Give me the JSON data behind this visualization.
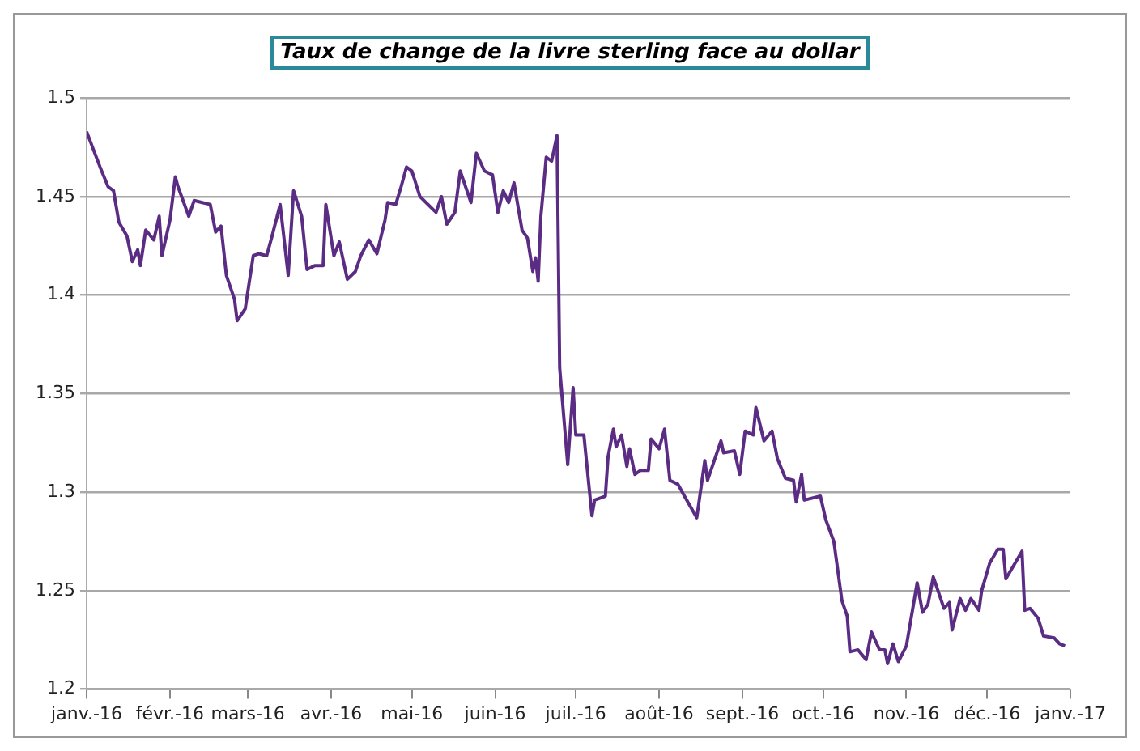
{
  "chart_data": {
    "type": "line",
    "title": "Taux de change de la livre sterling face au dollar",
    "xlim": [
      "2016-01-01",
      "2017-01-01"
    ],
    "xticks": [
      {
        "value": "2016-01-01",
        "label": "janv.-16"
      },
      {
        "value": "2016-02-01",
        "label": "févr.-16"
      },
      {
        "value": "2016-03-01",
        "label": "mars-16"
      },
      {
        "value": "2016-04-01",
        "label": "avr.-16"
      },
      {
        "value": "2016-05-01",
        "label": "mai-16"
      },
      {
        "value": "2016-06-01",
        "label": "juin-16"
      },
      {
        "value": "2016-07-01",
        "label": "juil.-16"
      },
      {
        "value": "2016-08-01",
        "label": "août-16"
      },
      {
        "value": "2016-09-01",
        "label": "sept.-16"
      },
      {
        "value": "2016-10-01",
        "label": "oct.-16"
      },
      {
        "value": "2016-11-01",
        "label": "nov.-16"
      },
      {
        "value": "2016-12-01",
        "label": "déc.-16"
      },
      {
        "value": "2017-01-01",
        "label": "janv.-17"
      }
    ],
    "ylim": [
      1.2,
      1.5
    ],
    "yticks": [
      1.2,
      1.25,
      1.3,
      1.35,
      1.4,
      1.45,
      1.5
    ],
    "grid": "y",
    "legend": false,
    "marker": "none",
    "line_style": "solid",
    "series": [
      {
        "color": "#5b2c83",
        "x": [
          "2016-01-01",
          "2016-01-06",
          "2016-01-09",
          "2016-01-11",
          "2016-01-13",
          "2016-01-16",
          "2016-01-18",
          "2016-01-20",
          "2016-01-21",
          "2016-01-23",
          "2016-01-26",
          "2016-01-28",
          "2016-01-29",
          "2016-02-01",
          "2016-02-03",
          "2016-02-04",
          "2016-02-08",
          "2016-02-10",
          "2016-02-13",
          "2016-02-16",
          "2016-02-18",
          "2016-02-20",
          "2016-02-22",
          "2016-02-25",
          "2016-02-26",
          "2016-02-29",
          "2016-03-03",
          "2016-03-05",
          "2016-03-08",
          "2016-03-10",
          "2016-03-13",
          "2016-03-16",
          "2016-03-18",
          "2016-03-21",
          "2016-03-23",
          "2016-03-26",
          "2016-03-29",
          "2016-03-30",
          "2016-04-02",
          "2016-04-04",
          "2016-04-07",
          "2016-04-10",
          "2016-04-12",
          "2016-04-15",
          "2016-04-18",
          "2016-04-21",
          "2016-04-22",
          "2016-04-25",
          "2016-04-27",
          "2016-04-29",
          "2016-05-01",
          "2016-05-04",
          "2016-05-10",
          "2016-05-12",
          "2016-05-14",
          "2016-05-17",
          "2016-05-19",
          "2016-05-23",
          "2016-05-25",
          "2016-05-28",
          "2016-05-31",
          "2016-06-02",
          "2016-06-04",
          "2016-06-06",
          "2016-06-08",
          "2016-06-11",
          "2016-06-13",
          "2016-06-15",
          "2016-06-16",
          "2016-06-17",
          "2016-06-18",
          "2016-06-20",
          "2016-06-22",
          "2016-06-24",
          "2016-06-25",
          "2016-06-28",
          "2016-06-30",
          "2016-07-01",
          "2016-07-04",
          "2016-07-07",
          "2016-07-08",
          "2016-07-12",
          "2016-07-13",
          "2016-07-15",
          "2016-07-16",
          "2016-07-18",
          "2016-07-20",
          "2016-07-21",
          "2016-07-23",
          "2016-07-25",
          "2016-07-28",
          "2016-07-29",
          "2016-08-01",
          "2016-08-03",
          "2016-08-05",
          "2016-08-08",
          "2016-08-10",
          "2016-08-15",
          "2016-08-18",
          "2016-08-19",
          "2016-08-24",
          "2016-08-25",
          "2016-08-29",
          "2016-08-31",
          "2016-09-02",
          "2016-09-05",
          "2016-09-06",
          "2016-09-09",
          "2016-09-12",
          "2016-09-14",
          "2016-09-17",
          "2016-09-20",
          "2016-09-21",
          "2016-09-23",
          "2016-09-24",
          "2016-09-30",
          "2016-10-02",
          "2016-10-05",
          "2016-10-08",
          "2016-10-10",
          "2016-10-11",
          "2016-10-14",
          "2016-10-17",
          "2016-10-19",
          "2016-10-22",
          "2016-10-24",
          "2016-10-25",
          "2016-10-27",
          "2016-10-29",
          "2016-11-01",
          "2016-11-05",
          "2016-11-07",
          "2016-11-09",
          "2016-11-11",
          "2016-11-15",
          "2016-11-17",
          "2016-11-18",
          "2016-11-21",
          "2016-11-23",
          "2016-11-25",
          "2016-11-28",
          "2016-11-29",
          "2016-12-02",
          "2016-12-05",
          "2016-12-07",
          "2016-12-08",
          "2016-12-14",
          "2016-12-15",
          "2016-12-17",
          "2016-12-20",
          "2016-12-22",
          "2016-12-26",
          "2016-12-28",
          "2016-12-30"
        ],
        "values": [
          1.483,
          1.465,
          1.455,
          1.453,
          1.437,
          1.43,
          1.417,
          1.423,
          1.415,
          1.433,
          1.428,
          1.44,
          1.42,
          1.438,
          1.46,
          1.455,
          1.44,
          1.448,
          1.447,
          1.446,
          1.432,
          1.435,
          1.41,
          1.398,
          1.387,
          1.393,
          1.42,
          1.421,
          1.42,
          1.43,
          1.446,
          1.41,
          1.453,
          1.44,
          1.413,
          1.415,
          1.415,
          1.446,
          1.42,
          1.427,
          1.408,
          1.412,
          1.42,
          1.428,
          1.421,
          1.438,
          1.447,
          1.446,
          1.455,
          1.465,
          1.463,
          1.45,
          1.442,
          1.45,
          1.436,
          1.442,
          1.463,
          1.447,
          1.472,
          1.463,
          1.461,
          1.442,
          1.453,
          1.447,
          1.457,
          1.433,
          1.429,
          1.412,
          1.419,
          1.407,
          1.44,
          1.47,
          1.468,
          1.481,
          1.363,
          1.314,
          1.353,
          1.329,
          1.329,
          1.288,
          1.296,
          1.298,
          1.318,
          1.332,
          1.323,
          1.329,
          1.313,
          1.322,
          1.309,
          1.311,
          1.311,
          1.327,
          1.322,
          1.332,
          1.306,
          1.304,
          1.299,
          1.287,
          1.316,
          1.306,
          1.326,
          1.32,
          1.321,
          1.309,
          1.331,
          1.329,
          1.343,
          1.326,
          1.331,
          1.317,
          1.307,
          1.306,
          1.295,
          1.309,
          1.296,
          1.298,
          1.286,
          1.275,
          1.245,
          1.237,
          1.219,
          1.22,
          1.215,
          1.229,
          1.22,
          1.22,
          1.213,
          1.223,
          1.214,
          1.222,
          1.254,
          1.239,
          1.243,
          1.257,
          1.241,
          1.244,
          1.23,
          1.246,
          1.24,
          1.246,
          1.24,
          1.25,
          1.264,
          1.271,
          1.271,
          1.256,
          1.27,
          1.24,
          1.241,
          1.236,
          1.227,
          1.226,
          1.223,
          1.222
        ]
      }
    ]
  }
}
